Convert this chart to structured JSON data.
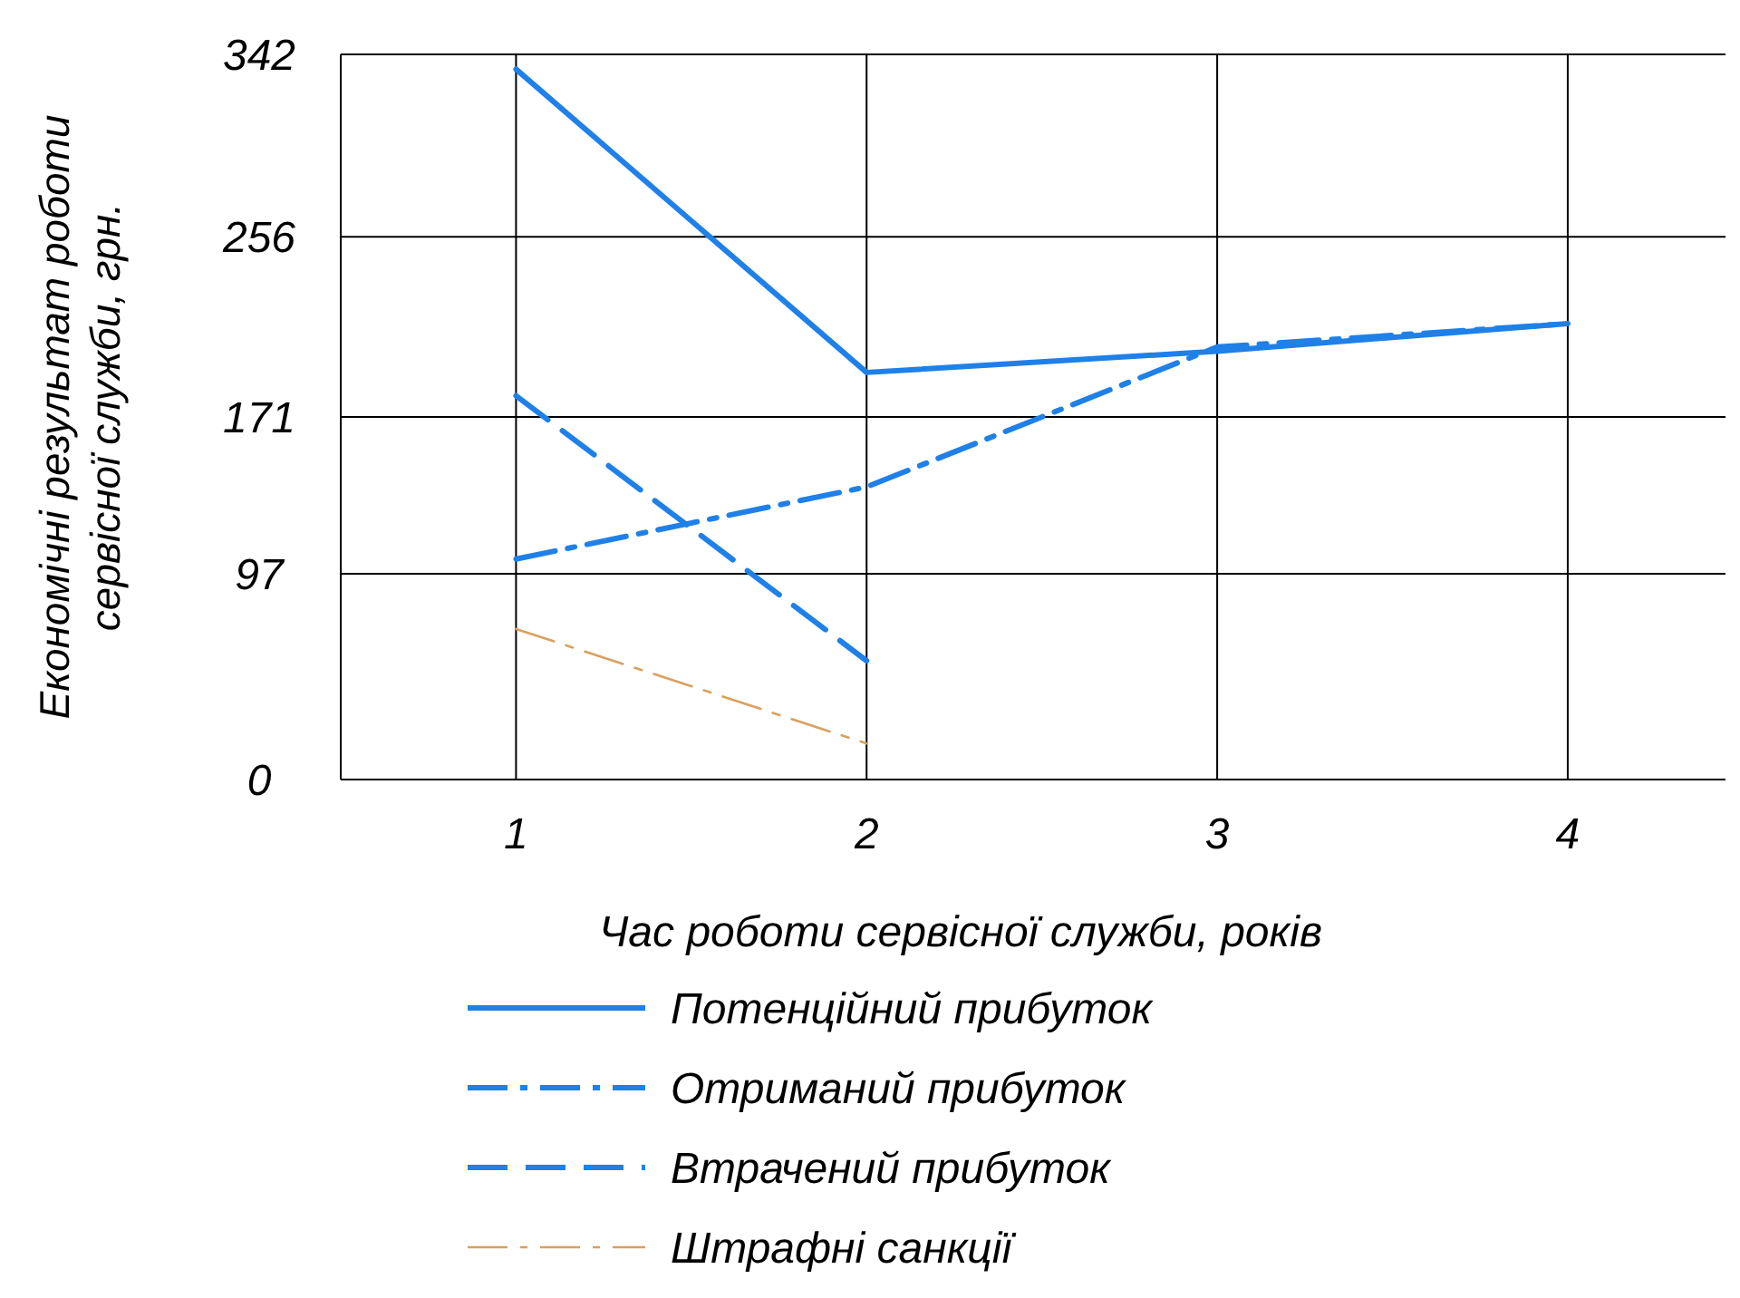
{
  "chart_data": {
    "type": "line",
    "xlabel": "Час роботи сервісної служби, років",
    "ylabel": "Економічні результат роботи сервісної служби, грн.",
    "x": [
      1,
      2,
      3,
      4
    ],
    "xlim": [
      0.5,
      4.45
    ],
    "xticks": [
      1,
      2,
      3,
      4
    ],
    "ylim": [
      0,
      342
    ],
    "yticks": [
      0,
      97,
      171,
      256,
      342
    ],
    "grid": true,
    "legend": "bottom",
    "marker": "none",
    "series": [
      {
        "name": "Потенційний прибуток",
        "color": "#1f80e8",
        "line_style": "solid",
        "values": [
          335,
          192,
          202,
          215
        ]
      },
      {
        "name": "Отриманий прибуток",
        "color": "#1f80e8",
        "line_style": "dashdot",
        "values": [
          104,
          138,
          204,
          215
        ]
      },
      {
        "name": "Втрачений прибуток",
        "color": "#1f80e8",
        "line_style": "dashed",
        "values": [
          181,
          56,
          null,
          null
        ]
      },
      {
        "name": "Штрафні санкції",
        "color": "#d9a060",
        "line_style": "dashdot",
        "values": [
          71,
          17,
          null,
          null
        ]
      }
    ]
  }
}
